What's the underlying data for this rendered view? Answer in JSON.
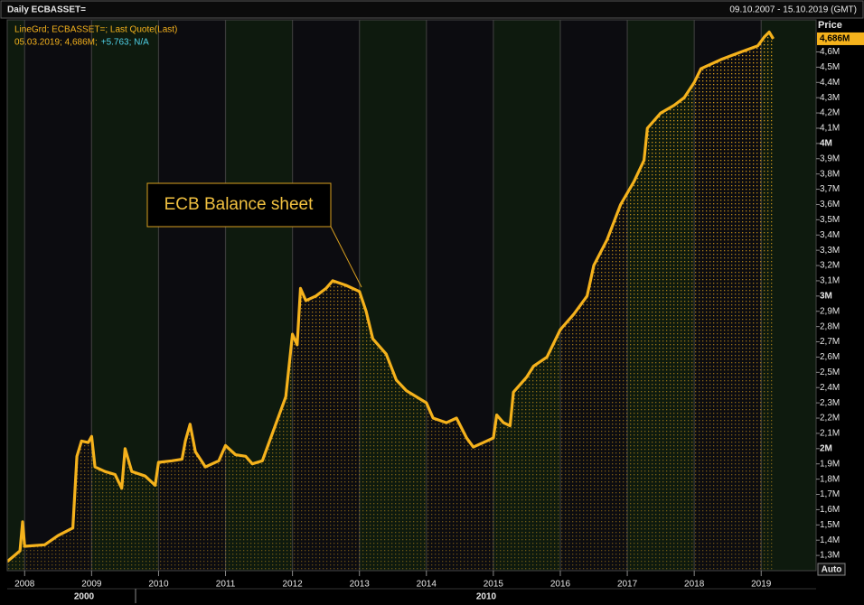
{
  "chart_data": {
    "type": "line",
    "title": "Daily ECBASSET=",
    "date_range": "09.10.2007 - 15.10.2019 (GMT)",
    "y_axis_label": "Price",
    "legend_lines": [
      "LineGrd; ECBASSET=; Last Quote(Last)",
      "05.03.2019; 4,686M;",
      "+5.763; N/A"
    ],
    "annotation": "ECB Balance sheet",
    "scale_mode": "Auto",
    "decade_labels": [
      "2000",
      "2010"
    ],
    "color": "#f5b21c",
    "last_label": {
      "value": 4.686,
      "label": "4,686M"
    },
    "x": [
      2007.74,
      2007.85,
      2007.93,
      2007.97,
      2008.0,
      2008.3,
      2008.5,
      2008.72,
      2008.78,
      2008.85,
      2008.95,
      2009.0,
      2009.05,
      2009.2,
      2009.35,
      2009.45,
      2009.5,
      2009.6,
      2009.8,
      2009.95,
      2010.0,
      2010.2,
      2010.35,
      2010.4,
      2010.47,
      2010.55,
      2010.7,
      2010.9,
      2011.0,
      2011.15,
      2011.3,
      2011.4,
      2011.55,
      2011.7,
      2011.9,
      2012.0,
      2012.07,
      2012.12,
      2012.2,
      2012.35,
      2012.5,
      2012.6,
      2012.8,
      2013.0,
      2013.1,
      2013.2,
      2013.4,
      2013.55,
      2013.7,
      2014.0,
      2014.1,
      2014.3,
      2014.45,
      2014.6,
      2014.7,
      2014.9,
      2015.0,
      2015.05,
      2015.15,
      2015.25,
      2015.3,
      2015.5,
      2015.6,
      2015.8,
      2016.0,
      2016.2,
      2016.4,
      2016.5,
      2016.7,
      2016.9,
      2017.1,
      2017.25,
      2017.3,
      2017.5,
      2017.7,
      2017.85,
      2018.0,
      2018.1,
      2018.4,
      2018.7,
      2018.95,
      2019.05,
      2019.12,
      2019.18
    ],
    "values": [
      1.26,
      1.3,
      1.33,
      1.52,
      1.36,
      1.37,
      1.43,
      1.48,
      1.95,
      2.05,
      2.04,
      2.08,
      1.88,
      1.85,
      1.83,
      1.74,
      2.0,
      1.85,
      1.82,
      1.76,
      1.91,
      1.92,
      1.93,
      2.05,
      2.16,
      1.98,
      1.88,
      1.92,
      2.02,
      1.96,
      1.95,
      1.9,
      1.92,
      2.1,
      2.34,
      2.75,
      2.68,
      3.05,
      2.97,
      3.0,
      3.05,
      3.1,
      3.07,
      3.03,
      2.9,
      2.72,
      2.62,
      2.45,
      2.38,
      2.3,
      2.2,
      2.17,
      2.2,
      2.07,
      2.01,
      2.05,
      2.07,
      2.22,
      2.17,
      2.15,
      2.37,
      2.47,
      2.54,
      2.6,
      2.78,
      2.88,
      3.0,
      3.2,
      3.37,
      3.6,
      3.75,
      3.89,
      4.1,
      4.2,
      4.25,
      4.3,
      4.4,
      4.49,
      4.55,
      4.6,
      4.64,
      4.7,
      4.73,
      4.686
    ],
    "xlim": [
      2007.74,
      2019.82
    ],
    "xticks": [
      2008,
      2009,
      2010,
      2011,
      2012,
      2013,
      2014,
      2015,
      2016,
      2017,
      2018,
      2019
    ],
    "ylim": [
      1.2,
      4.81
    ],
    "yticks": [
      {
        "value": 1.3,
        "label": "1,3M"
      },
      {
        "value": 1.4,
        "label": "1,4M"
      },
      {
        "value": 1.5,
        "label": "1,5M"
      },
      {
        "value": 1.6,
        "label": "1,6M"
      },
      {
        "value": 1.7,
        "label": "1,7M"
      },
      {
        "value": 1.8,
        "label": "1,8M"
      },
      {
        "value": 1.9,
        "label": "1,9M"
      },
      {
        "value": 2,
        "label": "2M"
      },
      {
        "value": 2.1,
        "label": "2,1M"
      },
      {
        "value": 2.2,
        "label": "2,2M"
      },
      {
        "value": 2.3,
        "label": "2,3M"
      },
      {
        "value": 2.4,
        "label": "2,4M"
      },
      {
        "value": 2.5,
        "label": "2,5M"
      },
      {
        "value": 2.6,
        "label": "2,6M"
      },
      {
        "value": 2.7,
        "label": "2,7M"
      },
      {
        "value": 2.8,
        "label": "2,8M"
      },
      {
        "value": 2.9,
        "label": "2,9M"
      },
      {
        "value": 3,
        "label": "3M"
      },
      {
        "value": 3.1,
        "label": "3,1M"
      },
      {
        "value": 3.2,
        "label": "3,2M"
      },
      {
        "value": 3.3,
        "label": "3,3M"
      },
      {
        "value": 3.4,
        "label": "3,4M"
      },
      {
        "value": 3.5,
        "label": "3,5M"
      },
      {
        "value": 3.6,
        "label": "3,6M"
      },
      {
        "value": 3.7,
        "label": "3,7M"
      },
      {
        "value": 3.8,
        "label": "3,8M"
      },
      {
        "value": 3.9,
        "label": "3,9M"
      },
      {
        "value": 4,
        "label": "4M"
      },
      {
        "value": 4.1,
        "label": "4,1M"
      },
      {
        "value": 4.2,
        "label": "4,2M"
      },
      {
        "value": 4.3,
        "label": "4,3M"
      },
      {
        "value": 4.4,
        "label": "4,4M"
      },
      {
        "value": 4.5,
        "label": "4,5M"
      },
      {
        "value": 4.6,
        "label": "4,6M"
      }
    ],
    "grid": true
  }
}
